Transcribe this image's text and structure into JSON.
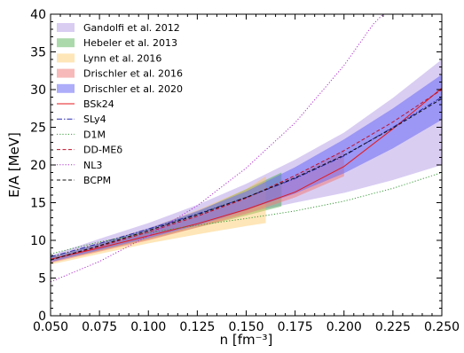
{
  "chart_data": {
    "type": "line",
    "xlabel": "n [fm⁻³]",
    "ylabel": "E/A [MeV]",
    "xlim": [
      0.05,
      0.25
    ],
    "ylim": [
      0,
      40
    ],
    "xticks": [
      "0.050",
      "0.075",
      "0.100",
      "0.125",
      "0.150",
      "0.175",
      "0.200",
      "0.225",
      "0.250"
    ],
    "yticks": [
      "0",
      "5",
      "10",
      "15",
      "20",
      "25",
      "30",
      "35",
      "40"
    ],
    "grid": false,
    "legend_position": "top-left",
    "bands": [
      {
        "name": "Gandolfi et al. 2012",
        "color": "#9370DB",
        "opacity": 0.35,
        "lower": [
          [
            0.05,
            7.2
          ],
          [
            0.075,
            8.8
          ],
          [
            0.1,
            10.5
          ],
          [
            0.125,
            12.1
          ],
          [
            0.15,
            13.6
          ],
          [
            0.175,
            15.0
          ],
          [
            0.2,
            16.3
          ],
          [
            0.225,
            18.0
          ],
          [
            0.25,
            20.0
          ]
        ],
        "upper": [
          [
            0.05,
            8.0
          ],
          [
            0.075,
            10.2
          ],
          [
            0.1,
            12.3
          ],
          [
            0.125,
            14.7
          ],
          [
            0.15,
            17.5
          ],
          [
            0.175,
            20.7
          ],
          [
            0.2,
            24.3
          ],
          [
            0.225,
            28.9
          ],
          [
            0.25,
            34.0
          ]
        ]
      },
      {
        "name": "Hebeler et al. 2013",
        "color": "#2CA02C",
        "opacity": 0.4,
        "lower": [
          [
            0.05,
            7.2
          ],
          [
            0.075,
            8.6
          ],
          [
            0.1,
            10.1
          ],
          [
            0.125,
            11.7
          ],
          [
            0.15,
            13.3
          ],
          [
            0.168,
            14.5
          ]
        ],
        "upper": [
          [
            0.05,
            7.8
          ],
          [
            0.075,
            9.6
          ],
          [
            0.1,
            11.5
          ],
          [
            0.125,
            13.8
          ],
          [
            0.15,
            16.8
          ],
          [
            0.168,
            19.0
          ]
        ]
      },
      {
        "name": "Lynn et al. 2016",
        "color": "#FFC04D",
        "opacity": 0.4,
        "lower": [
          [
            0.05,
            6.8
          ],
          [
            0.075,
            8.2
          ],
          [
            0.1,
            9.6
          ],
          [
            0.125,
            10.8
          ],
          [
            0.15,
            11.9
          ],
          [
            0.16,
            12.3
          ]
        ],
        "upper": [
          [
            0.05,
            7.8
          ],
          [
            0.075,
            9.7
          ],
          [
            0.1,
            11.6
          ],
          [
            0.125,
            14.0
          ],
          [
            0.15,
            16.8
          ],
          [
            0.16,
            18.5
          ]
        ]
      },
      {
        "name": "Drischler et al. 2016",
        "color": "#F08080",
        "opacity": 0.55,
        "lower": [
          [
            0.05,
            7.0
          ],
          [
            0.075,
            8.5
          ],
          [
            0.1,
            10.0
          ],
          [
            0.125,
            11.7
          ],
          [
            0.15,
            13.5
          ],
          [
            0.175,
            15.7
          ],
          [
            0.2,
            18.5
          ]
        ],
        "upper": [
          [
            0.05,
            7.6
          ],
          [
            0.075,
            9.4
          ],
          [
            0.1,
            11.3
          ],
          [
            0.125,
            13.3
          ],
          [
            0.15,
            15.6
          ],
          [
            0.175,
            18.5
          ],
          [
            0.2,
            22.0
          ]
        ]
      },
      {
        "name": "Drischler et al. 2020",
        "color": "#6A6AF5",
        "opacity": 0.55,
        "lower": [
          [
            0.05,
            7.1
          ],
          [
            0.075,
            8.7
          ],
          [
            0.1,
            10.3
          ],
          [
            0.125,
            12.0
          ],
          [
            0.15,
            14.0
          ],
          [
            0.175,
            16.2
          ],
          [
            0.2,
            18.9
          ],
          [
            0.225,
            22.2
          ],
          [
            0.25,
            26.0
          ]
        ],
        "upper": [
          [
            0.05,
            7.7
          ],
          [
            0.075,
            9.6
          ],
          [
            0.1,
            11.6
          ],
          [
            0.125,
            13.9
          ],
          [
            0.15,
            16.5
          ],
          [
            0.175,
            19.7
          ],
          [
            0.2,
            23.4
          ],
          [
            0.225,
            27.5
          ],
          [
            0.25,
            32.0
          ]
        ]
      }
    ],
    "series": [
      {
        "name": "BSk24",
        "color": "#E41A1C",
        "dash": "solid",
        "x": [
          0.05,
          0.075,
          0.1,
          0.125,
          0.15,
          0.175,
          0.2,
          0.225,
          0.25
        ],
        "y": [
          7.5,
          9.0,
          10.6,
          12.2,
          14.1,
          16.4,
          19.8,
          24.8,
          30.2
        ]
      },
      {
        "name": "SLy4",
        "color": "#2A2AB0",
        "dash": "dashdot",
        "x": [
          0.05,
          0.075,
          0.1,
          0.125,
          0.15,
          0.175,
          0.2,
          0.225,
          0.25
        ],
        "y": [
          7.8,
          9.6,
          11.5,
          13.5,
          15.7,
          18.2,
          21.2,
          25.0,
          29.0
        ]
      },
      {
        "name": "D1M",
        "color": "#3A9A3A",
        "dash": "dotted",
        "x": [
          0.05,
          0.075,
          0.1,
          0.125,
          0.15,
          0.175,
          0.2,
          0.225,
          0.25
        ],
        "y": [
          8.2,
          9.8,
          11.0,
          12.0,
          12.9,
          13.9,
          15.2,
          16.9,
          19.0
        ]
      },
      {
        "name": "DD-MEδ",
        "color": "#C0102A",
        "dash": "dashed",
        "x": [
          0.05,
          0.075,
          0.1,
          0.125,
          0.15,
          0.175,
          0.2,
          0.225,
          0.25
        ],
        "y": [
          7.4,
          9.2,
          11.1,
          13.2,
          15.6,
          18.6,
          21.9,
          25.7,
          30.0
        ]
      },
      {
        "name": "NL3",
        "color": "#B030D0",
        "dash": "dotted",
        "x": [
          0.05,
          0.075,
          0.1,
          0.125,
          0.15,
          0.175,
          0.2,
          0.215,
          0.22
        ],
        "y": [
          4.5,
          7.2,
          10.6,
          14.6,
          19.6,
          25.6,
          33.2,
          38.7,
          40.0
        ]
      },
      {
        "name": "BCPM",
        "color": "#111111",
        "dash": "dashed",
        "x": [
          0.05,
          0.075,
          0.1,
          0.125,
          0.15,
          0.175,
          0.2,
          0.225,
          0.25
        ],
        "y": [
          7.4,
          9.3,
          11.3,
          13.4,
          15.7,
          18.3,
          21.3,
          24.9,
          28.8
        ]
      }
    ]
  }
}
